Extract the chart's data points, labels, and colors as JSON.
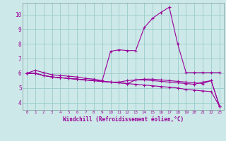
{
  "xlabel": "Windchill (Refroidissement éolien,°C)",
  "bg_color": "#cde8e8",
  "line_color": "#990099",
  "grid_color": "#99cccc",
  "xlim": [
    -0.5,
    23.5
  ],
  "ylim": [
    3.5,
    10.8
  ],
  "xticks": [
    0,
    1,
    2,
    3,
    4,
    5,
    6,
    7,
    8,
    9,
    10,
    11,
    12,
    13,
    14,
    15,
    16,
    17,
    18,
    19,
    20,
    21,
    22,
    23
  ],
  "yticks": [
    4,
    5,
    6,
    7,
    8,
    9,
    10
  ],
  "curves": [
    [
      6.0,
      6.2,
      6.05,
      5.9,
      5.85,
      5.8,
      5.75,
      5.65,
      5.6,
      5.5,
      7.5,
      7.6,
      7.55,
      7.55,
      9.1,
      9.75,
      10.15,
      10.5,
      8.0,
      6.05,
      6.05,
      6.05,
      6.05,
      6.05
    ],
    [
      6.0,
      6.0,
      5.85,
      5.75,
      5.7,
      5.65,
      5.6,
      5.55,
      5.5,
      5.45,
      5.4,
      5.4,
      5.5,
      5.55,
      5.55,
      5.5,
      5.45,
      5.4,
      5.35,
      5.3,
      5.25,
      5.4,
      5.5,
      3.75
    ],
    [
      6.0,
      6.0,
      5.85,
      5.75,
      5.7,
      5.65,
      5.6,
      5.55,
      5.5,
      5.45,
      5.4,
      5.35,
      5.3,
      5.25,
      5.2,
      5.15,
      5.1,
      5.05,
      5.0,
      4.9,
      4.85,
      4.8,
      4.75,
      3.75
    ],
    [
      6.0,
      6.0,
      5.85,
      5.75,
      5.7,
      5.65,
      5.6,
      5.55,
      5.5,
      5.45,
      5.4,
      5.35,
      5.3,
      5.55,
      5.6,
      5.6,
      5.55,
      5.5,
      5.45,
      5.4,
      5.35,
      5.3,
      5.5,
      3.75
    ]
  ],
  "marker": "+"
}
